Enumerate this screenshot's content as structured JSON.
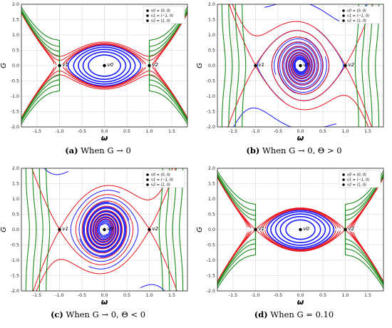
{
  "chart_data": [
    {
      "type": "line",
      "panel": "a",
      "caption": {
        "tag": "(a)",
        "text": "When G → 0"
      },
      "xlabel": "ω",
      "ylabel": "G",
      "xlim": [
        -1.85,
        1.85
      ],
      "ylim": [
        -2.0,
        2.0
      ],
      "xticks": [
        "-1.5",
        "-1.0",
        "-0.5",
        "0.0",
        "0.5",
        "1.0",
        "1.5"
      ],
      "yticks": [
        "-2.0",
        "-1.5",
        "-1.0",
        "-0.5",
        "0.0",
        "0.5",
        "1.0",
        "1.5",
        "2.0"
      ],
      "grid": true,
      "legend_position": "top-right",
      "legend": [
        "v0 = (0, 0)",
        "v1 = (−1, 0)",
        "v2 = (1, 0)"
      ],
      "equilibria": [
        {
          "label": "v0",
          "x": 0,
          "y": 0
        },
        {
          "label": "v1",
          "x": -1,
          "y": 0
        },
        {
          "label": "v2",
          "x": 1,
          "y": 0
        }
      ],
      "flow": {
        "kind": "center",
        "blue_orbit_levels": [
          0.06,
          0.1,
          0.14,
          0.18,
          0.22
        ],
        "red_levels": [
          0.235,
          0.245,
          0.265,
          0.295
        ],
        "green_levels": [
          0.3,
          0.36,
          0.45,
          0.6
        ]
      }
    },
    {
      "type": "line",
      "panel": "b",
      "caption": {
        "tag": "(b)",
        "text": "When G → 0, Θ > 0"
      },
      "xlabel": "ω",
      "ylabel": "G",
      "xlim": [
        -1.85,
        1.85
      ],
      "ylim": [
        -2.0,
        2.0
      ],
      "xticks": [
        "-1.5",
        "-1.0",
        "-0.5",
        "0.0",
        "0.5",
        "1.0",
        "1.5"
      ],
      "yticks": [
        "-2.0",
        "-1.5",
        "-1.0",
        "-0.5",
        "0.0",
        "0.5",
        "1.0",
        "1.5",
        "2.0"
      ],
      "grid": true,
      "legend_position": "top-right",
      "legend": [
        "v0 = (0, 0)",
        "v1 = (−1, 0)",
        "v2 = (1, 0)"
      ],
      "equilibria": [
        {
          "label": "v0",
          "x": 0,
          "y": 0
        },
        {
          "label": "v1",
          "x": -1,
          "y": 0
        },
        {
          "label": "v2",
          "x": 1,
          "y": 0
        }
      ],
      "flow": {
        "kind": "sink",
        "damping": 0.12
      }
    },
    {
      "type": "line",
      "panel": "c",
      "caption": {
        "tag": "(c)",
        "text": "When G → 0, Θ < 0"
      },
      "xlabel": "ω",
      "ylabel": "G",
      "xlim": [
        -1.85,
        1.85
      ],
      "ylim": [
        -2.0,
        2.0
      ],
      "xticks": [
        "-1.5",
        "-1.0",
        "-0.5",
        "0.0",
        "0.5",
        "1.0",
        "1.5"
      ],
      "yticks": [
        "-2.0",
        "-1.5",
        "-1.0",
        "-0.5",
        "0.0",
        "0.5",
        "1.0",
        "1.5",
        "2.0"
      ],
      "grid": true,
      "legend_position": "top-right",
      "legend": [
        "v0 = (0, 0)",
        "v1 = (−1, 0)",
        "v2 = (1, 0)"
      ],
      "equilibria": [
        {
          "label": "v0",
          "x": 0,
          "y": 0
        },
        {
          "label": "v1",
          "x": -1,
          "y": 0
        },
        {
          "label": "v2",
          "x": 1,
          "y": 0
        }
      ],
      "flow": {
        "kind": "source",
        "damping": -0.12
      }
    },
    {
      "type": "line",
      "panel": "d",
      "caption": {
        "tag": "(d)",
        "text": "When G = 0.10"
      },
      "xlabel": "ω",
      "ylabel": "G",
      "xlim": [
        -1.85,
        1.85
      ],
      "ylim": [
        -2.0,
        2.0
      ],
      "xticks": [
        "-1.5",
        "-1.0",
        "-0.5",
        "0.0",
        "0.5",
        "1.0",
        "1.5"
      ],
      "yticks": [
        "-2.0",
        "-1.5",
        "-1.0",
        "-0.5",
        "0.0",
        "0.5",
        "1.0",
        "1.5",
        "2.0"
      ],
      "grid": true,
      "legend_position": "top-right",
      "legend": [
        "v0 = (0, 0)",
        "v1 = (−1, 0)",
        "v2 = (1, 0)"
      ],
      "equilibria": [
        {
          "label": "v0",
          "x": 0,
          "y": 0
        },
        {
          "label": "v1",
          "x": -1,
          "y": 0
        },
        {
          "label": "v2",
          "x": 1,
          "y": 0
        }
      ],
      "flow": {
        "kind": "center",
        "blue_orbit_levels": [
          0.05,
          0.09,
          0.13,
          0.17,
          0.2
        ],
        "red_levels": [
          0.215,
          0.23,
          0.24,
          0.25
        ],
        "green_levels": [
          0.3,
          0.36,
          0.45,
          0.6
        ]
      }
    }
  ],
  "colors": {
    "stable_orbit": "#1a1aff",
    "separatrix": "#e8141a",
    "outer": "#1a8a1a",
    "grid": "#d4d4d4"
  }
}
